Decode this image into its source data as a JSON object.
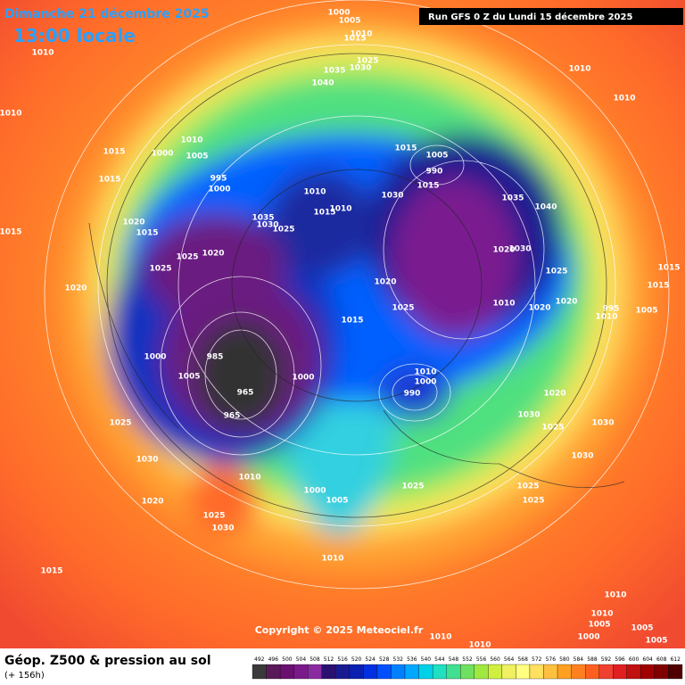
{
  "header": {
    "date": "Dimanche 21 décembre 2025",
    "time": "13:00 locale",
    "run": "Run GFS 0 Z du Lundi 15 décembre 2025"
  },
  "footer": {
    "title": "Géop. Z500 & pression au sol",
    "subtitle": "(+ 156h)",
    "copyright": "Copyright © 2025 Meteociel.fr"
  },
  "scale": [
    492,
    496,
    500,
    504,
    508,
    512,
    516,
    520,
    524,
    528,
    532,
    536,
    540,
    544,
    548,
    552,
    556,
    560,
    564,
    568,
    572,
    576,
    580,
    584,
    588,
    592,
    596,
    600,
    604,
    608,
    612
  ],
  "isobar_labels": [
    1000,
    1005,
    1010,
    1015,
    1025,
    1030,
    1035,
    1040,
    1010,
    1010,
    1010,
    1010,
    1015,
    1000,
    1010,
    1005,
    995,
    1000,
    1015,
    1015,
    1020,
    1015,
    1025,
    1020,
    1025,
    1020,
    1035,
    1030,
    1025,
    1010,
    1015,
    1010,
    1030,
    1015,
    1005,
    990,
    1015,
    1035,
    1040,
    1020,
    1030,
    1025,
    1020,
    1010,
    1020,
    1020,
    1015,
    1025,
    1000,
    985,
    1005,
    965,
    1000,
    965,
    1010,
    1000,
    990,
    1020,
    1030,
    1025,
    1030,
    1025,
    1030,
    1010,
    1030,
    1000,
    1005,
    1025,
    1025,
    1025,
    1020,
    1025,
    1030,
    1010,
    1015,
    1010,
    1010,
    1005,
    1005,
    1000,
    1005,
    1010,
    1010,
    1010,
    995,
    1005,
    1015,
    1015
  ]
}
